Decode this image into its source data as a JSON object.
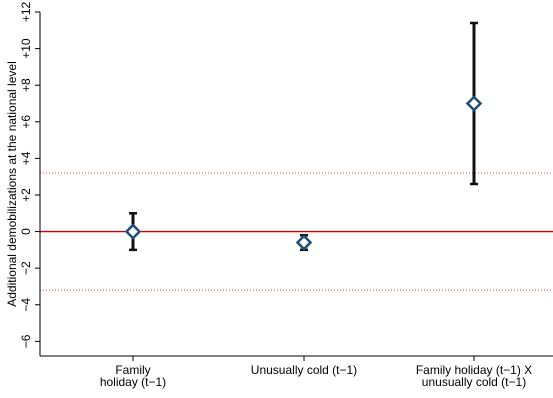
{
  "chart_data": {
    "type": "scatter",
    "ylabel": "Additional demobilizations at the national level",
    "ylim": [
      -6.8,
      12
    ],
    "yticks": [
      -6,
      -4,
      -2,
      0,
      2,
      4,
      6,
      8,
      10,
      12
    ],
    "ytick_labels": [
      "−6",
      "−4",
      "−2",
      "0",
      "+2",
      "+4",
      "+6",
      "+8",
      "+10",
      "+12"
    ],
    "categories": [
      [
        "Family",
        "holiday (t−1)"
      ],
      [
        "Unusually cold (t−1)"
      ],
      [
        "Family holiday (t−1) X",
        "unusually cold (t−1)"
      ]
    ],
    "series": [
      {
        "estimates": [
          0.0,
          -0.6,
          7.0
        ],
        "ci_low": [
          -1.0,
          -1.0,
          2.6
        ],
        "ci_high": [
          1.0,
          -0.2,
          11.4
        ]
      }
    ],
    "reference_line": {
      "y": 0,
      "color": "#cc0000"
    },
    "dotted_lines": {
      "y": [
        3.2,
        -3.2
      ],
      "color": "#dd4444"
    },
    "marker_color": "#1f4e79",
    "ci_color": "#111111",
    "grid": false
  }
}
